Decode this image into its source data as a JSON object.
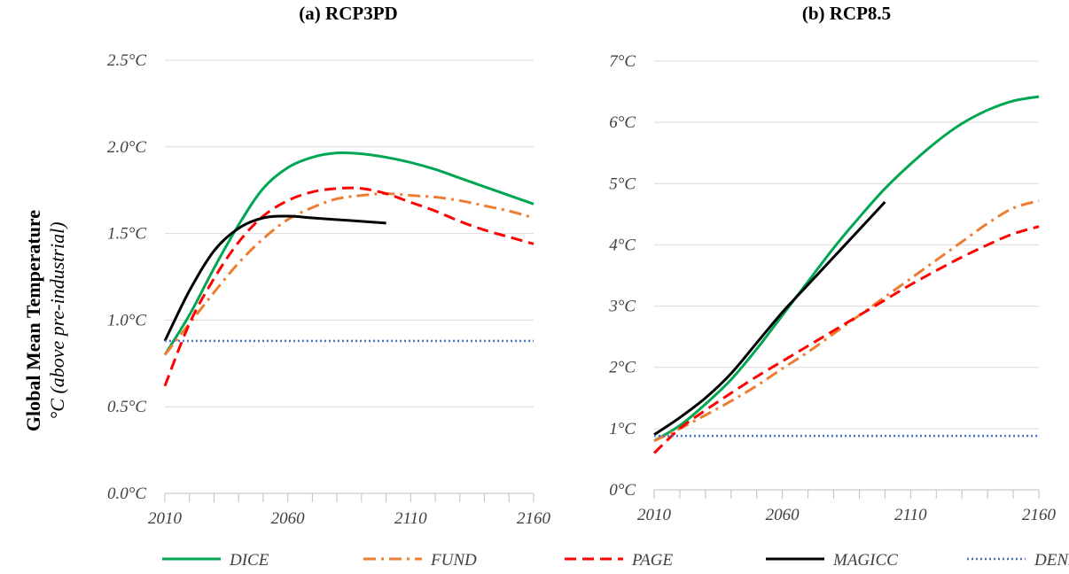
{
  "ylabel": {
    "main": "Global Mean Temperature",
    "sub": "°C (above pre-industrial)"
  },
  "legend": [
    {
      "name": "DICE",
      "color": "#00a651",
      "dash": "solid"
    },
    {
      "name": "FUND",
      "color": "#ed7d31",
      "dash": "dashdot"
    },
    {
      "name": "PAGE",
      "color": "#ff0000",
      "dash": "dashed"
    },
    {
      "name": "MAGICC",
      "color": "#000000",
      "dash": "solid"
    },
    {
      "name": "DENIAL",
      "color": "#4472c4",
      "dash": "dotted"
    }
  ],
  "chart_data": [
    {
      "type": "line",
      "title": "(a)  RCP3PD",
      "xlabel": "",
      "xlim": [
        2010,
        2160
      ],
      "xticks": [
        "2010",
        "2060",
        "2110",
        "2160"
      ],
      "xtick_values": [
        2010,
        2060,
        2110,
        2160
      ],
      "minor_tick_step": 10,
      "ylim": [
        0,
        2.5
      ],
      "yticks": [
        "0.0°C",
        "0.5°C",
        "1.0°C",
        "1.5°C",
        "2.0°C",
        "2.5°C"
      ],
      "ytick_values": [
        0,
        0.5,
        1.0,
        1.5,
        2.0,
        2.5
      ],
      "grid": true,
      "series": [
        {
          "name": "DICE",
          "color": "#00a651",
          "dash": "solid",
          "x": [
            2010,
            2020,
            2030,
            2040,
            2050,
            2060,
            2070,
            2080,
            2090,
            2100,
            2110,
            2120,
            2130,
            2140,
            2150,
            2160
          ],
          "y": [
            0.8,
            1.03,
            1.3,
            1.55,
            1.76,
            1.88,
            1.94,
            1.965,
            1.96,
            1.94,
            1.91,
            1.87,
            1.82,
            1.77,
            1.72,
            1.67
          ]
        },
        {
          "name": "FUND",
          "color": "#ed7d31",
          "dash": "dashdot",
          "x": [
            2010,
            2020,
            2030,
            2040,
            2050,
            2060,
            2070,
            2080,
            2090,
            2100,
            2110,
            2120,
            2130,
            2140,
            2150,
            2160
          ],
          "y": [
            0.8,
            0.98,
            1.16,
            1.33,
            1.47,
            1.58,
            1.65,
            1.7,
            1.72,
            1.73,
            1.72,
            1.71,
            1.69,
            1.66,
            1.63,
            1.59
          ]
        },
        {
          "name": "PAGE",
          "color": "#ff0000",
          "dash": "dashed",
          "x": [
            2010,
            2020,
            2030,
            2040,
            2050,
            2060,
            2070,
            2080,
            2090,
            2100,
            2110,
            2120,
            2130,
            2140,
            2150,
            2160
          ],
          "y": [
            0.62,
            0.98,
            1.24,
            1.45,
            1.6,
            1.69,
            1.74,
            1.76,
            1.76,
            1.73,
            1.68,
            1.63,
            1.57,
            1.52,
            1.48,
            1.44
          ]
        },
        {
          "name": "MAGICC",
          "color": "#000000",
          "dash": "solid",
          "x": [
            2010,
            2020,
            2030,
            2040,
            2050,
            2060,
            2070,
            2080,
            2090,
            2100
          ],
          "y": [
            0.88,
            1.17,
            1.4,
            1.53,
            1.59,
            1.6,
            1.59,
            1.58,
            1.57,
            1.56
          ]
        },
        {
          "name": "DENIAL",
          "color": "#4472c4",
          "dash": "dotted",
          "x": [
            2010,
            2160
          ],
          "y": [
            0.88,
            0.88
          ]
        }
      ]
    },
    {
      "type": "line",
      "title": "(b)  RCP8.5",
      "xlabel": "",
      "xlim": [
        2010,
        2160
      ],
      "xticks": [
        "2010",
        "2060",
        "2110",
        "2160"
      ],
      "xtick_values": [
        2010,
        2060,
        2110,
        2160
      ],
      "minor_tick_step": 10,
      "ylim": [
        0,
        7
      ],
      "yticks": [
        "0°C",
        "1°C",
        "2°C",
        "3°C",
        "4°C",
        "5°C",
        "6°C",
        "7°C"
      ],
      "ytick_values": [
        0,
        1,
        2,
        3,
        4,
        5,
        6,
        7
      ],
      "grid": true,
      "series": [
        {
          "name": "DICE",
          "color": "#00a651",
          "dash": "solid",
          "x": [
            2010,
            2020,
            2030,
            2040,
            2050,
            2060,
            2070,
            2080,
            2090,
            2100,
            2110,
            2120,
            2130,
            2140,
            2150,
            2160
          ],
          "y": [
            0.8,
            1.05,
            1.4,
            1.8,
            2.3,
            2.85,
            3.4,
            3.95,
            4.45,
            4.92,
            5.32,
            5.68,
            5.98,
            6.2,
            6.35,
            6.42
          ]
        },
        {
          "name": "FUND",
          "color": "#ed7d31",
          "dash": "dashdot",
          "x": [
            2010,
            2020,
            2030,
            2040,
            2050,
            2060,
            2070,
            2080,
            2090,
            2100,
            2110,
            2120,
            2130,
            2140,
            2150,
            2160
          ],
          "y": [
            0.8,
            1.0,
            1.22,
            1.45,
            1.7,
            1.98,
            2.25,
            2.55,
            2.85,
            3.15,
            3.45,
            3.75,
            4.05,
            4.35,
            4.6,
            4.72
          ]
        },
        {
          "name": "PAGE",
          "color": "#ff0000",
          "dash": "dashed",
          "x": [
            2010,
            2020,
            2030,
            2040,
            2050,
            2060,
            2070,
            2080,
            2090,
            2100,
            2110,
            2120,
            2130,
            2140,
            2150,
            2160
          ],
          "y": [
            0.6,
            1.0,
            1.3,
            1.58,
            1.85,
            2.1,
            2.35,
            2.6,
            2.85,
            3.1,
            3.35,
            3.58,
            3.8,
            4.0,
            4.18,
            4.3
          ]
        },
        {
          "name": "MAGICC",
          "color": "#000000",
          "dash": "solid",
          "x": [
            2010,
            2020,
            2030,
            2040,
            2050,
            2060,
            2070,
            2080,
            2090,
            2100
          ],
          "y": [
            0.9,
            1.18,
            1.5,
            1.9,
            2.4,
            2.9,
            3.35,
            3.8,
            4.25,
            4.7
          ]
        },
        {
          "name": "DENIAL",
          "color": "#4472c4",
          "dash": "dotted",
          "x": [
            2010,
            2160
          ],
          "y": [
            0.88,
            0.88
          ]
        }
      ]
    }
  ]
}
